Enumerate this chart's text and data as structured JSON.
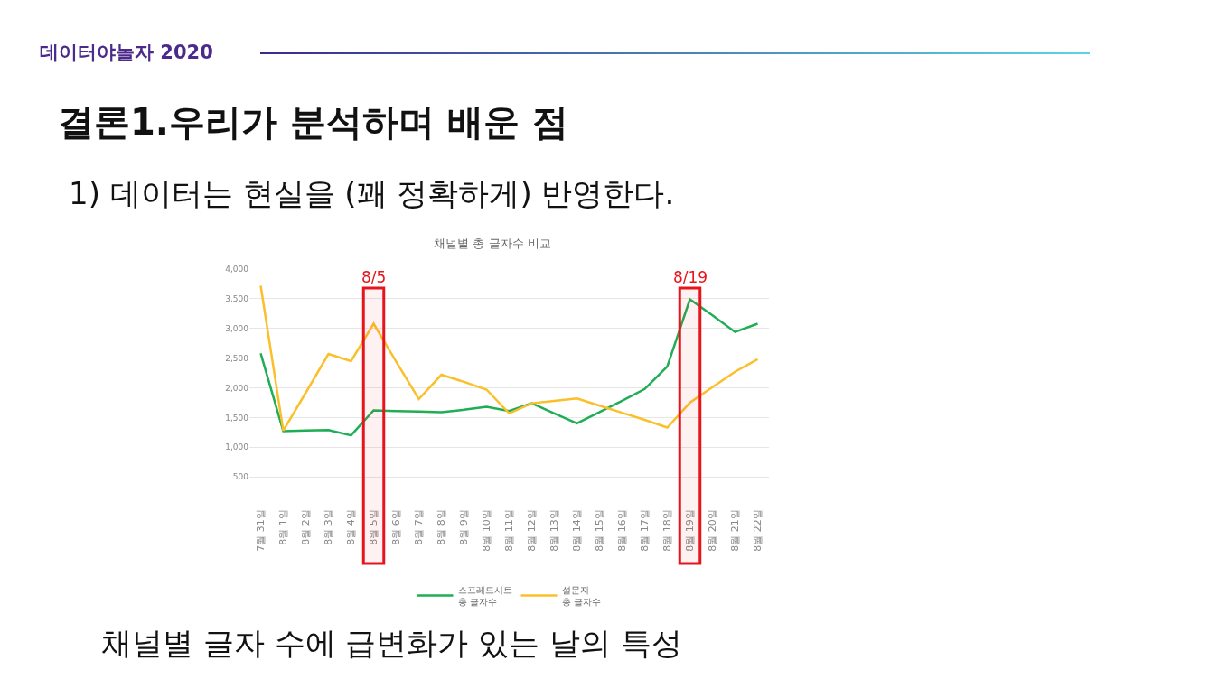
{
  "chart_data": {
    "type": "line",
    "title": "채널별 총 글자수 비교",
    "annotations": [
      "데이터야놀자 2020",
      "결론1.우리가 분석하며 배운 점",
      "1) 데이터는 현실을 (꽤 정확하게) 반영한다.",
      "채널별 글자 수에 급변화가 있는 날의 특성"
    ],
    "categories": [
      "7월 31일",
      "8월 1일",
      "8월 2일",
      "8월 3일",
      "8월 4일",
      "8월 5일",
      "8월 6일",
      "8월 7일",
      "8월 8일",
      "8월 9일",
      "8월 10일",
      "8월 11일",
      "8월 12일",
      "8월 13일",
      "8월 14일",
      "8월 15일",
      "8월 16일",
      "8월 17일",
      "8월 18일",
      "8월 19일",
      "8월 20일",
      "8월 21일",
      "8월 22일"
    ],
    "series": [
      {
        "name": "스프레드시트\n총 글자수",
        "color": "#1fad55",
        "values": [
          2580,
          1270,
          1280,
          1290,
          1200,
          1620,
          1610,
          1600,
          1590,
          1630,
          1680,
          1610,
          1740,
          1570,
          1400,
          1590,
          1780,
          1980,
          2360,
          3490,
          3220,
          2940,
          3080
        ]
      },
      {
        "name": "설문지\n총 글자수",
        "color": "#fbbf2a",
        "values": [
          3720,
          1280,
          1920,
          2570,
          2450,
          3080,
          2440,
          1810,
          2220,
          2100,
          1970,
          1570,
          1740,
          1780,
          1820,
          1700,
          1580,
          1460,
          1330,
          1750,
          2010,
          2270,
          2480
        ]
      }
    ],
    "ylim": [
      0,
      4000
    ],
    "yticks": [
      {
        "value": 0,
        "label": "-"
      },
      {
        "value": 500,
        "label": "500"
      },
      {
        "value": 1000,
        "label": "1,000"
      },
      {
        "value": 1500,
        "label": "1,500"
      },
      {
        "value": 2000,
        "label": "2,000"
      },
      {
        "value": 2500,
        "label": "2,500"
      },
      {
        "value": 3000,
        "label": "3,000"
      },
      {
        "value": 3500,
        "label": "3,500"
      },
      {
        "value": 4000,
        "label": "4,000"
      }
    ],
    "grid": "y",
    "legend": "bottom",
    "line_style": "solid",
    "marker": "none",
    "bands": [
      {
        "axis": "x",
        "from": "8월 5일",
        "to": "8월 5일",
        "label": "8/5",
        "color": "#e8141c"
      },
      {
        "axis": "x",
        "from": "8월 19일",
        "to": "8월 19일",
        "label": "8/19",
        "color": "#e8141c"
      }
    ]
  }
}
